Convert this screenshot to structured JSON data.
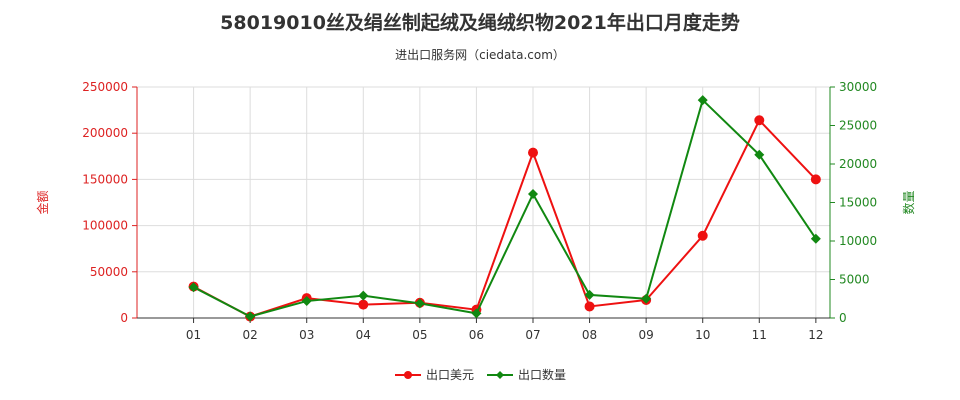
{
  "chart_data": {
    "type": "line",
    "title": "58019010丝及绢丝制起绒及绳绒织物2021年出口月度走势",
    "subtitle": "进出口服务网（ciedata.com）",
    "categories": [
      "01",
      "02",
      "03",
      "04",
      "05",
      "06",
      "07",
      "08",
      "09",
      "10",
      "11",
      "12"
    ],
    "y_left": {
      "label": "金额",
      "lim": [
        0,
        250000
      ],
      "ticks": [
        0,
        50000,
        100000,
        150000,
        200000,
        250000
      ],
      "color": "#dd2222"
    },
    "y_right": {
      "label": "数量",
      "lim": [
        0,
        30000
      ],
      "ticks": [
        0,
        5000,
        10000,
        15000,
        20000,
        25000,
        30000
      ],
      "color": "#228822"
    },
    "series": [
      {
        "name": "出口美元",
        "axis": "left",
        "color": "#ee1111",
        "values": [
          34000,
          1500,
          21500,
          14500,
          16500,
          9000,
          179000,
          12500,
          19500,
          89000,
          214000,
          150000
        ]
      },
      {
        "name": "出口数量",
        "axis": "right",
        "color": "#118811",
        "values": [
          4000,
          200,
          2200,
          2900,
          1900,
          600,
          16100,
          3000,
          2500,
          28300,
          21200,
          10300
        ]
      }
    ],
    "grid": true,
    "legend": "bottom-center"
  }
}
